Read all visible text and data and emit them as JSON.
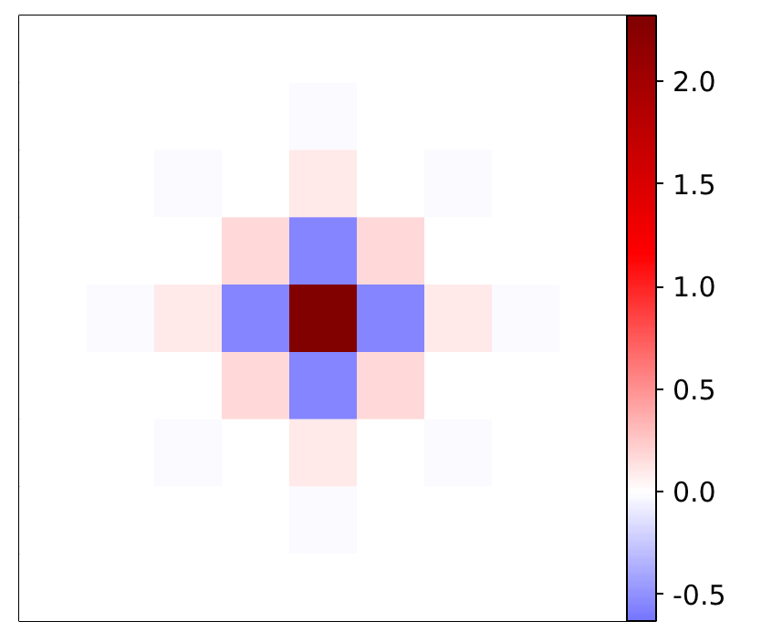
{
  "chart_data": {
    "type": "heatmap",
    "categories": [
      null,
      null,
      null,
      null,
      null,
      null,
      null,
      null,
      null
    ],
    "y_categories": [
      null,
      null,
      null,
      null,
      null,
      null,
      null,
      null,
      null
    ],
    "cells": [
      [
        0,
        0,
        0,
        0,
        0,
        0,
        0,
        0,
        0
      ],
      [
        0,
        0,
        0,
        0,
        -0.03,
        0,
        0,
        0,
        0
      ],
      [
        0,
        0,
        -0.03,
        0,
        0.1,
        0,
        -0.03,
        0,
        0
      ],
      [
        0,
        0,
        0,
        0.17,
        -0.55,
        0.17,
        0,
        0,
        0
      ],
      [
        0,
        -0.03,
        0.1,
        -0.55,
        2.3,
        -0.55,
        0.1,
        -0.03,
        0
      ],
      [
        0,
        0,
        0,
        0.17,
        -0.55,
        0.17,
        0,
        0,
        0
      ],
      [
        0,
        0,
        -0.03,
        0,
        0.1,
        0,
        -0.03,
        0,
        0
      ],
      [
        0,
        0,
        0,
        0,
        -0.03,
        0,
        0,
        0,
        0
      ],
      [
        0,
        0,
        0,
        0,
        0,
        0,
        0,
        0,
        0
      ]
    ],
    "clim": [
      -0.63,
      2.32
    ],
    "cticks": [
      -0.5,
      {
        "value": 0,
        "label": "0.0"
      },
      0.5,
      {
        "value": 1,
        "label": "1.0"
      },
      1.5,
      {
        "value": 2,
        "label": "2.0"
      }
    ],
    "tick_labels": false
  }
}
